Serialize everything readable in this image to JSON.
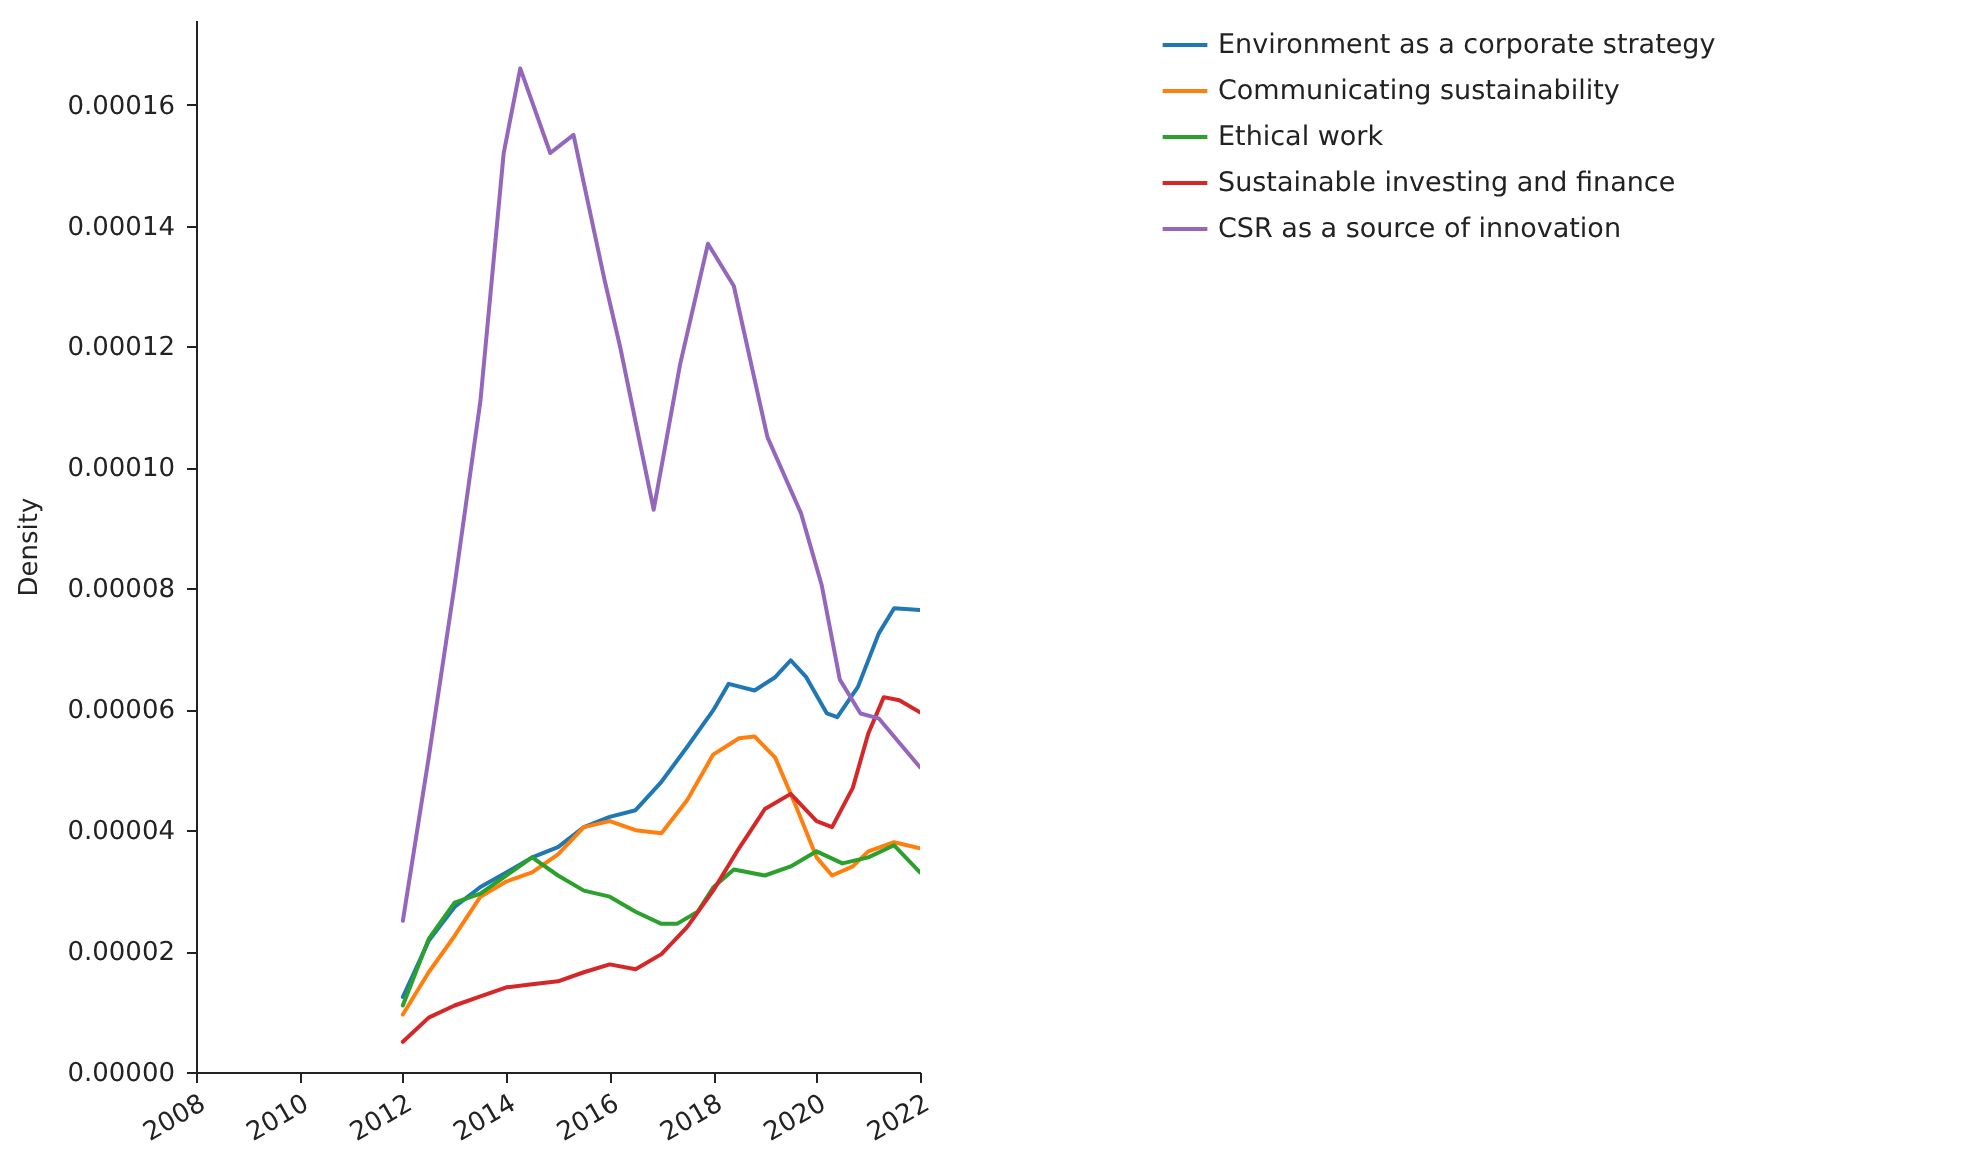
{
  "chart_data": {
    "type": "line",
    "ylabel": "Density",
    "xlim": [
      2008,
      2022
    ],
    "xticks": [
      2008,
      2010,
      2012,
      2014,
      2016,
      2018,
      2020,
      2022
    ],
    "ylim": [
      0,
      0.000174
    ],
    "yticks": [
      {
        "value": 0,
        "label": "0.00000"
      },
      {
        "value": 2e-05,
        "label": "0.00002"
      },
      {
        "value": 4e-05,
        "label": "0.00004"
      },
      {
        "value": 6e-05,
        "label": "0.00006"
      },
      {
        "value": 8e-05,
        "label": "0.00008"
      },
      {
        "value": 0.0001,
        "label": "0.00010"
      },
      {
        "value": 0.00012,
        "label": "0.00012"
      },
      {
        "value": 0.00014,
        "label": "0.00014"
      },
      {
        "value": 0.00016,
        "label": "0.00016"
      }
    ],
    "legend": "right",
    "grid": false,
    "series": [
      {
        "name": "Environment as a corporate strategy",
        "color": "#1f77b4",
        "x": [
          2012,
          2012.5,
          2013,
          2013.5,
          2014,
          2014.5,
          2015,
          2015.5,
          2016,
          2016.5,
          2017,
          2017.5,
          2018,
          2018.3,
          2018.8,
          2019.2,
          2019.5,
          2019.8,
          2020.2,
          2020.4,
          2020.8,
          2021.2,
          2021.5,
          2022
        ],
        "values": [
          1.24e-05,
          2.17e-05,
          2.73e-05,
          3.06e-05,
          3.3e-05,
          3.55e-05,
          3.72e-05,
          4.05e-05,
          4.22e-05,
          4.33e-05,
          4.8e-05,
          5.38e-05,
          5.98e-05,
          6.42e-05,
          6.31e-05,
          6.53e-05,
          6.81e-05,
          6.53e-05,
          5.93e-05,
          5.87e-05,
          6.37e-05,
          7.25e-05,
          7.67e-05,
          7.64e-05
        ]
      },
      {
        "name": "Communicating sustainability",
        "color": "#ff7f0e",
        "x": [
          2012,
          2012.5,
          2013,
          2013.5,
          2014,
          2014.5,
          2015,
          2015.5,
          2016,
          2016.5,
          2017,
          2017.5,
          2018,
          2018.5,
          2018.8,
          2019.2,
          2019.6,
          2020,
          2020.3,
          2020.7,
          2021,
          2021.5,
          2022
        ],
        "values": [
          9.5e-06,
          1.65e-05,
          2.25e-05,
          2.9e-05,
          3.15e-05,
          3.3e-05,
          3.6e-05,
          4.05e-05,
          4.15e-05,
          4e-05,
          3.95e-05,
          4.5e-05,
          5.25e-05,
          5.52e-05,
          5.55e-05,
          5.2e-05,
          4.4e-05,
          3.55e-05,
          3.25e-05,
          3.4e-05,
          3.65e-05,
          3.8e-05,
          3.7e-05
        ]
      },
      {
        "name": "Ethical work",
        "color": "#2ca02c",
        "x": [
          2012,
          2012.5,
          2013,
          2013.5,
          2014,
          2014.5,
          2015,
          2015.5,
          2016,
          2016.5,
          2017,
          2017.3,
          2017.7,
          2018,
          2018.4,
          2019,
          2019.5,
          2020,
          2020.5,
          2021,
          2021.5,
          2022
        ],
        "values": [
          1.1e-05,
          2.2e-05,
          2.8e-05,
          2.95e-05,
          3.25e-05,
          3.55e-05,
          3.25e-05,
          3e-05,
          2.9e-05,
          2.65e-05,
          2.45e-05,
          2.45e-05,
          2.65e-05,
          3.05e-05,
          3.35e-05,
          3.25e-05,
          3.4e-05,
          3.65e-05,
          3.45e-05,
          3.55e-05,
          3.75e-05,
          3.3e-05
        ]
      },
      {
        "name": "Sustainable investing and finance",
        "color": "#d62728",
        "x": [
          2012,
          2012.5,
          2013,
          2013.5,
          2014,
          2014.5,
          2015,
          2015.5,
          2016,
          2016.5,
          2017,
          2017.5,
          2018,
          2018.5,
          2019,
          2019.5,
          2020,
          2020.3,
          2020.7,
          2021,
          2021.3,
          2021.6,
          2022
        ],
        "values": [
          5e-06,
          9e-06,
          1.1e-05,
          1.25e-05,
          1.4e-05,
          1.45e-05,
          1.5e-05,
          1.65e-05,
          1.78e-05,
          1.7e-05,
          1.95e-05,
          2.4e-05,
          3e-05,
          3.7e-05,
          4.35e-05,
          4.6e-05,
          4.15e-05,
          4.05e-05,
          4.7e-05,
          5.6e-05,
          6.2e-05,
          6.15e-05,
          5.95e-05
        ]
      },
      {
        "name": "CSR as a source of innovation",
        "color": "#9467bd",
        "x": [
          2012,
          2012.5,
          2013,
          2013.5,
          2013.95,
          2014.27,
          2014.85,
          2015.3,
          2015.9,
          2016.2,
          2016.85,
          2017.36,
          2017.9,
          2018.4,
          2019.05,
          2019.7,
          2020.1,
          2020.45,
          2020.85,
          2021.2,
          2022
        ],
        "values": [
          2.5e-05,
          5.2e-05,
          8.05e-05,
          0.000111,
          0.000152,
          0.000166,
          0.000152,
          0.000155,
          0.000131,
          0.00012,
          9.3e-05,
          0.000117,
          0.000137,
          0.00013,
          0.000105,
          9.24e-05,
          8.05e-05,
          6.49e-05,
          5.93e-05,
          5.85e-05,
          5.04e-05
        ]
      }
    ]
  }
}
